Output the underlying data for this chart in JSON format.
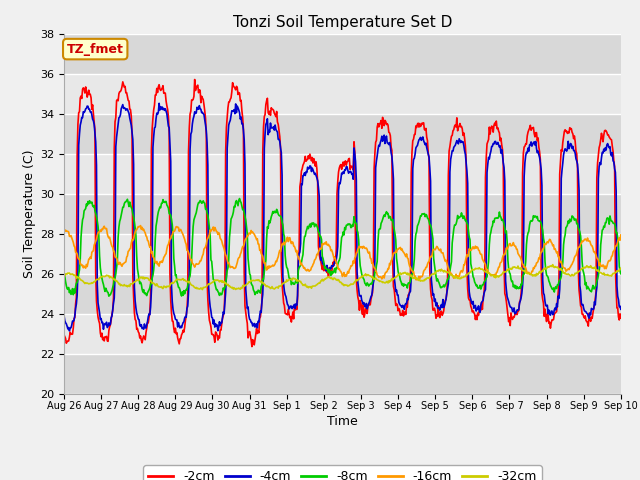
{
  "title": "Tonzi Soil Temperature Set D",
  "xlabel": "Time",
  "ylabel": "Soil Temperature (C)",
  "ylim": [
    20,
    38
  ],
  "yticks": [
    20,
    22,
    24,
    26,
    28,
    30,
    32,
    34,
    36,
    38
  ],
  "annotation_text": "TZ_fmet",
  "annotation_color": "#cc0000",
  "annotation_bg": "#ffffcc",
  "annotation_border": "#cc8800",
  "legend_labels": [
    "-2cm",
    "-4cm",
    "-8cm",
    "-16cm",
    "-32cm"
  ],
  "line_colors": [
    "#ff0000",
    "#0000cc",
    "#00cc00",
    "#ff9900",
    "#cccc00"
  ],
  "line_widths": [
    1.2,
    1.2,
    1.2,
    1.2,
    1.2
  ],
  "plot_bg_color": "#e8e8e8",
  "fig_bg_color": "#f0f0f0",
  "n_days": 15,
  "pts_per_day": 48,
  "tick_labels": [
    "Aug 26",
    "Aug 27",
    "Aug 28",
    "Aug 29",
    "Aug 30",
    "Aug 31",
    "Sep 1",
    "Sep 2",
    "Sep 3",
    "Sep 4",
    "Sep 5",
    "Sep 6",
    "Sep 7",
    "Sep 8",
    "Sep 9",
    "Sep 10"
  ],
  "grid_color": "white",
  "alt_band_color": "#d8d8d8",
  "alt_band_color2": "#e8e8e8"
}
